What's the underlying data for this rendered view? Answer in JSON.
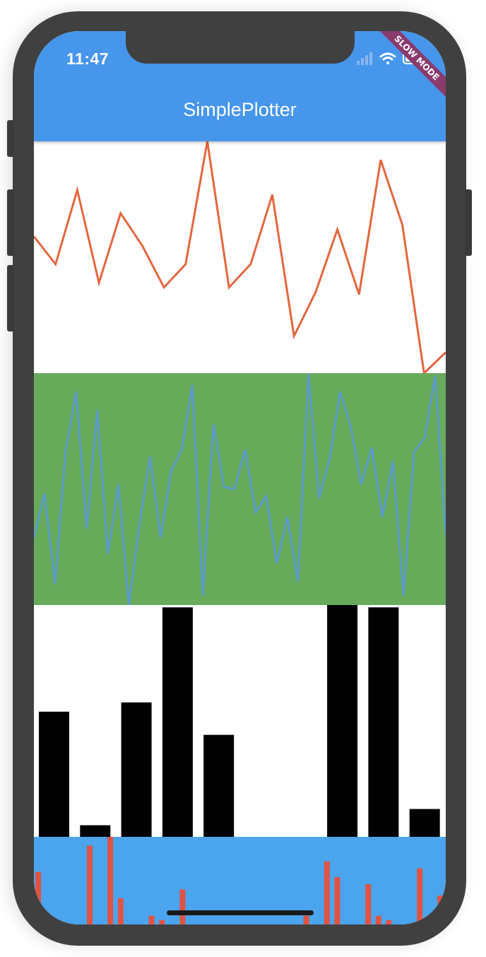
{
  "status_bar": {
    "time": "11:47"
  },
  "app_bar": {
    "title": "SimplePlotter"
  },
  "debug_banner": {
    "label": "SLOW MODE",
    "color": "#8a3b6e"
  },
  "colors": {
    "app_bar": "#4696ec",
    "line_red": "#e4663f",
    "panel_green": "#67ab5b",
    "line_blue": "#5b9cc9",
    "bar_black": "#000000",
    "panel_blue": "#4aa5ee",
    "bar_red": "#e05343"
  },
  "icons": [
    "signal-icon",
    "wifi-icon",
    "battery-icon"
  ],
  "chart_data": [
    {
      "type": "line",
      "ylim": [
        0,
        1
      ],
      "values": [
        0.59,
        0.47,
        0.79,
        0.39,
        0.69,
        0.55,
        0.37,
        0.47,
        1.0,
        0.37,
        0.47,
        0.77,
        0.16,
        0.35,
        0.62,
        0.34,
        0.92,
        0.64,
        0.0,
        0.09
      ]
    },
    {
      "type": "line",
      "ylim": [
        0,
        1
      ],
      "values": [
        0.29,
        0.48,
        0.09,
        0.66,
        0.92,
        0.33,
        0.84,
        0.22,
        0.52,
        0.0,
        0.35,
        0.64,
        0.29,
        0.58,
        0.67,
        0.95,
        0.04,
        0.78,
        0.51,
        0.5,
        0.67,
        0.4,
        0.47,
        0.18,
        0.38,
        0.1,
        1.0,
        0.46,
        0.63,
        0.92,
        0.77,
        0.52,
        0.68,
        0.38,
        0.62,
        0.04,
        0.66,
        0.72,
        0.99,
        0.3
      ]
    },
    {
      "type": "bar",
      "ylim": [
        0,
        1
      ],
      "values": [
        0.54,
        0.05,
        0.58,
        0.99,
        0.44,
        0.0,
        0.0,
        1.0,
        0.99,
        0.12
      ]
    },
    {
      "type": "bar",
      "ylim": [
        0,
        1
      ],
      "values": [
        0.6,
        0,
        0,
        0,
        0,
        0.9,
        0,
        1.0,
        0.3,
        0,
        0,
        0.1,
        0.05,
        0,
        0.4,
        0,
        0,
        0,
        0,
        0,
        0,
        0,
        0,
        0,
        0,
        0,
        0.1,
        0,
        0.72,
        0.54,
        0,
        0,
        0.46,
        0.1,
        0.05,
        0,
        0,
        0.64,
        0,
        0.33,
        0
      ]
    }
  ]
}
